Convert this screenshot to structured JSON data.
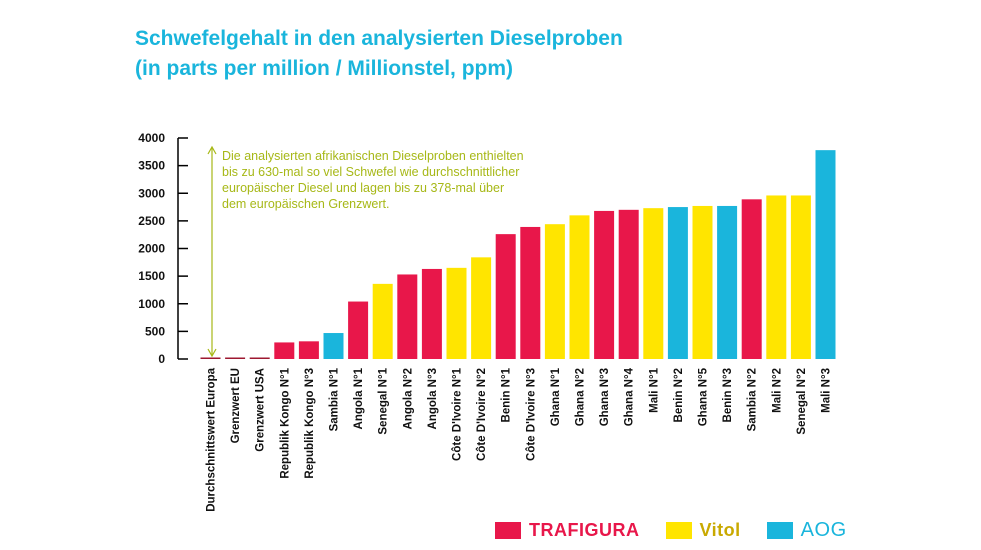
{
  "header": {
    "title_line1": "Schwefelgehalt in den analysierten Dieselproben",
    "title_line2": "(in parts per million / Millionstel, ppm)"
  },
  "chart_data": {
    "type": "bar",
    "title": "Schwefelgehalt in den analysierten Dieselproben (in parts per million / Millionstel, ppm)",
    "ylim": [
      0,
      4000
    ],
    "yticks": [
      0,
      500,
      1000,
      1500,
      2000,
      2500,
      3000,
      3500,
      4000
    ],
    "grid": false,
    "legend_position": "bottom-right",
    "annotation": {
      "lines": [
        "Die analysierten afrikanischen Dieselproben enthielten",
        "bis zu 630-mal so viel Schwefel wie durchschnittlicher",
        "europäischer Diesel und lagen bis zu 378-mal über",
        "dem europäischen Grenzwert."
      ],
      "color": "#a7b817"
    },
    "categories": [
      "Durchschnittswert Europa",
      "Grenzwert EU",
      "Grenzwert USA",
      "Republik Kongo N°1",
      "Republik Kongo N°3",
      "Sambia N°1",
      "Angola N°1",
      "Senegal N°1",
      "Angola N°2",
      "Angola N°3",
      "Côte D'Ivoire N°1",
      "Côte D'Ivoire N°2",
      "Benin N°1",
      "Côte D'Ivoire N°3",
      "Ghana N°1",
      "Ghana N°2",
      "Ghana N°3",
      "Ghana N°4",
      "Mali N°1",
      "Benin N°2",
      "Ghana N°5",
      "Benin N°3",
      "Sambia N°2",
      "Mali N°2",
      "Senegal N°2",
      "Mali N°3"
    ],
    "values": [
      6,
      10,
      15,
      300,
      320,
      470,
      1040,
      1360,
      1530,
      1630,
      1650,
      1840,
      2260,
      2390,
      2440,
      2600,
      2680,
      2700,
      2730,
      2750,
      2770,
      2770,
      2890,
      2960,
      2960,
      3780
    ],
    "companies": [
      "ref",
      "ref",
      "ref",
      "Trafigura",
      "Trafigura",
      "AOG",
      "Trafigura",
      "Vitol",
      "Trafigura",
      "Trafigura",
      "Vitol",
      "Vitol",
      "Trafigura",
      "Trafigura",
      "Vitol",
      "Vitol",
      "Trafigura",
      "Trafigura",
      "Vitol",
      "AOG",
      "Vitol",
      "AOG",
      "Trafigura",
      "Vitol",
      "Vitol",
      "AOG"
    ],
    "colors": {
      "ref": "#9e1830",
      "Trafigura": "#e8174a",
      "Vitol": "#ffe500",
      "AOG": "#1ab5dc"
    },
    "legend": [
      {
        "name": "TRAFIGURA",
        "key": "Trafigura"
      },
      {
        "name": "Vitol",
        "key": "Vitol"
      },
      {
        "name": "AOG",
        "key": "AOG"
      }
    ]
  }
}
